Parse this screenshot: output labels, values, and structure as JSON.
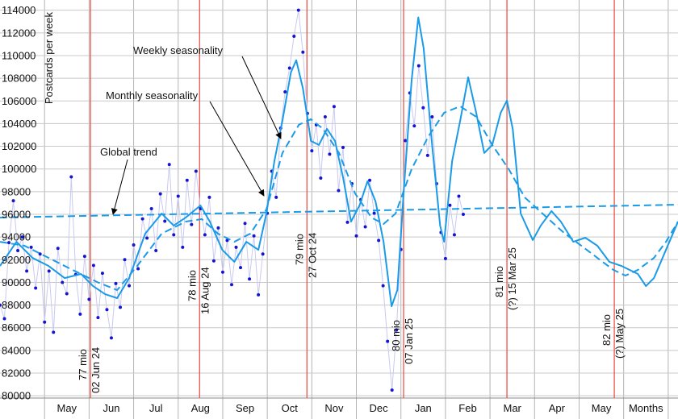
{
  "chart_data": {
    "type": "line",
    "y_label": "Postcards per week",
    "ylim": [
      79800,
      114900
    ],
    "yticks": [
      80000,
      82000,
      84000,
      86000,
      88000,
      90000,
      92000,
      94000,
      96000,
      98000,
      100000,
      102000,
      104000,
      106000,
      108000,
      110000,
      112000,
      114000
    ],
    "xlim": [
      -1,
      14.22
    ],
    "categories": [
      "May",
      "Jun",
      "Jul",
      "Aug",
      "Sep",
      "Oct",
      "Nov",
      "Dec",
      "Jan",
      "Feb",
      "Mar",
      "Apr",
      "May",
      "Months"
    ],
    "grid": true,
    "series": [
      {
        "mark": "scatter",
        "color": "#1414d2",
        "link_color": "#c9c9f2",
        "x": [
          -1.0,
          -0.9,
          -0.8,
          -0.7,
          -0.6,
          -0.5,
          -0.4,
          -0.3,
          -0.2,
          -0.1,
          0.0,
          0.1,
          0.2,
          0.3,
          0.4,
          0.5,
          0.6,
          0.7,
          0.8,
          0.9,
          1.0,
          1.1,
          1.2,
          1.3,
          1.4,
          1.5,
          1.6,
          1.7,
          1.8,
          1.9,
          2.0,
          2.1,
          2.2,
          2.3,
          2.4,
          2.5,
          2.6,
          2.7,
          2.8,
          2.9,
          3.0,
          3.1,
          3.2,
          3.3,
          3.4,
          3.5,
          3.6,
          3.7,
          3.8,
          3.9,
          4.0,
          4.1,
          4.2,
          4.3,
          4.4,
          4.5,
          4.6,
          4.7,
          4.8,
          4.9,
          5.0,
          5.1,
          5.2,
          5.3,
          5.4,
          5.5,
          5.6,
          5.7,
          5.8,
          5.9,
          6.0,
          6.1,
          6.2,
          6.3,
          6.4,
          6.5,
          6.6,
          6.7,
          6.8,
          6.9,
          7.0,
          7.1,
          7.2,
          7.3,
          7.4,
          7.5,
          7.6,
          7.7,
          7.8,
          7.9,
          8.0,
          8.1,
          8.2,
          8.3,
          8.4,
          8.5,
          8.6,
          8.7,
          8.8,
          8.9,
          9.0,
          9.1,
          9.2,
          9.3,
          9.4
        ],
        "values": [
          88000,
          86800,
          93500,
          97200,
          92800,
          94000,
          91000,
          93100,
          89500,
          92500,
          86500,
          91000,
          85600,
          93000,
          90000,
          89000,
          99300,
          90700,
          87200,
          92300,
          88500,
          91500,
          86900,
          90800,
          87600,
          85100,
          89900,
          87800,
          92000,
          89700,
          93300,
          91200,
          95600,
          93900,
          96500,
          92800,
          97800,
          95400,
          100400,
          94200,
          97600,
          93100,
          99000,
          95100,
          99800,
          96500,
          94200,
          97500,
          91900,
          94800,
          90900,
          93700,
          89800,
          93100,
          91300,
          95200,
          90300,
          94100,
          88900,
          92500,
          96100,
          99800,
          97500,
          103600,
          106800,
          108900,
          111700,
          114000,
          110300,
          104900,
          101600,
          103900,
          99200,
          104600,
          101300,
          105500,
          98100,
          101900,
          95300,
          98700,
          94100,
          97300,
          94900,
          99000,
          96100,
          93700,
          89700,
          84800,
          80500,
          85800,
          92900,
          102500,
          106700,
          103800,
          109100,
          105400,
          101200,
          104600,
          98700,
          94400,
          92100,
          96800,
          94200,
          97600,
          96000
        ]
      },
      {
        "mark": "line",
        "color": "#1a9be8",
        "dash": false,
        "x": [
          -1.0,
          -0.63,
          -0.27,
          0.09,
          0.45,
          0.82,
          1.09,
          1.36,
          1.63,
          1.9,
          2.26,
          2.63,
          2.9,
          3.17,
          3.5,
          3.71,
          3.99,
          4.26,
          4.53,
          4.8,
          4.98,
          5.16,
          5.34,
          5.53,
          5.65,
          5.8,
          5.98,
          6.16,
          6.34,
          6.52,
          6.7,
          6.88,
          7.07,
          7.25,
          7.43,
          7.61,
          7.79,
          7.92,
          8.06,
          8.24,
          8.39,
          8.51,
          8.7,
          8.88,
          8.97,
          9.15,
          9.33,
          9.51,
          9.69,
          9.87,
          10.05,
          10.24,
          10.38,
          10.51,
          10.69,
          10.96,
          11.14,
          11.38,
          11.59,
          11.87,
          12.14,
          12.41,
          12.68,
          12.95,
          13.32,
          13.5,
          13.68,
          13.95,
          14.22
        ],
        "values": [
          91450,
          93580,
          92160,
          91450,
          90380,
          90740,
          89670,
          88960,
          88610,
          90380,
          94300,
          96070,
          95010,
          95720,
          96780,
          95360,
          92870,
          91810,
          93580,
          92870,
          96070,
          100700,
          104250,
          108520,
          109590,
          107100,
          102470,
          102120,
          103540,
          102470,
          99270,
          95360,
          96780,
          98920,
          97140,
          93580,
          87890,
          89320,
          97850,
          107810,
          113360,
          110650,
          102120,
          95010,
          93580,
          100700,
          104250,
          108090,
          104960,
          101410,
          102120,
          104960,
          106030,
          103540,
          96070,
          93730,
          95010,
          96290,
          95360,
          93580,
          93940,
          93230,
          91810,
          91450,
          90740,
          89670,
          90380,
          92870,
          95360
        ]
      },
      {
        "mark": "line",
        "color": "#1a9be8",
        "dash": true,
        "x": [
          -1.0,
          -0.45,
          0.09,
          0.63,
          1.18,
          1.63,
          2.08,
          2.63,
          3.17,
          3.53,
          3.89,
          4.26,
          4.62,
          4.98,
          5.34,
          5.71,
          5.98,
          6.25,
          6.61,
          6.97,
          7.34,
          7.61,
          7.88,
          8.24,
          8.61,
          8.97,
          9.33,
          9.69,
          10.05,
          10.42,
          10.78,
          11.32,
          11.68,
          12.05,
          12.41,
          12.77,
          13.04,
          13.32,
          13.68,
          13.95,
          14.22
        ],
        "values": [
          93580,
          93230,
          92160,
          91100,
          90030,
          89320,
          91450,
          94300,
          95360,
          95580,
          94300,
          93580,
          94300,
          96430,
          101410,
          103900,
          104390,
          103540,
          101410,
          97850,
          95710,
          95150,
          96070,
          99990,
          102830,
          104960,
          105530,
          104600,
          102120,
          99990,
          97490,
          95570,
          94300,
          93230,
          92160,
          91100,
          90600,
          91100,
          92160,
          93580,
          95360
        ]
      },
      {
        "mark": "line",
        "color": "#1a9be8",
        "dash": true,
        "x": [
          -1.0,
          14.22
        ],
        "values": [
          95720,
          96850
        ]
      }
    ],
    "milestones": [
      {
        "x": 1.03,
        "labels": [
          "77 mio",
          "02 Jun 24"
        ],
        "color": "#e8463c"
      },
      {
        "x": 3.48,
        "labels": [
          "78 mio",
          "16 Aug 24"
        ],
        "color": "#e8463c"
      },
      {
        "x": 5.89,
        "labels": [
          "79 mio",
          "27 Oct 24"
        ],
        "color": "#e8463c"
      },
      {
        "x": 8.06,
        "labels": [
          "80 mio",
          "07 Jan 25"
        ],
        "color": "#e8463c"
      },
      {
        "x": 10.38,
        "labels": [
          "81 mio",
          "(?) 15 Mar 25"
        ],
        "color": "#e8463c"
      },
      {
        "x": 12.79,
        "labels": [
          "82 mio",
          "(?) May 25"
        ],
        "color": "#e8463c"
      }
    ],
    "annotations": [
      {
        "text": "Weekly seasonality"
      },
      {
        "text": "Monthly seasonality"
      },
      {
        "text": "Global trend"
      }
    ]
  }
}
